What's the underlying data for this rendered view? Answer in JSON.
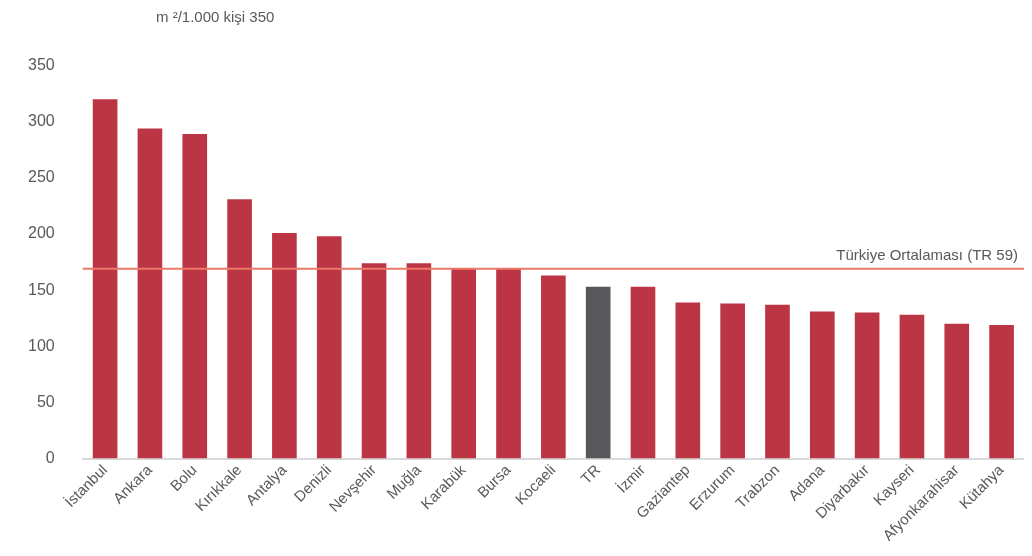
{
  "chart_data": {
    "type": "bar",
    "ylabel": "m ²/1.000 kişi 350",
    "categories": [
      "İstanbul",
      "Ankara",
      "Bolu",
      "Kırıkkale",
      "Antalya",
      "Denizli",
      "Nevşehir",
      "Muğla",
      "Karabük",
      "Bursa",
      "Kocaeli",
      "TR",
      "İzmir",
      "Gaziantep",
      "Erzurum",
      "Trabzon",
      "Adana",
      "Diyarbakır",
      "Kayseri",
      "Afyonkarahisar",
      "Kütahya"
    ],
    "values": [
      320,
      294,
      289,
      231,
      201,
      198,
      174,
      174,
      169,
      169,
      163,
      153,
      153,
      139,
      138,
      137,
      131,
      130,
      128,
      120,
      119
    ],
    "colors": [
      "#bc3545",
      "#bc3545",
      "#bc3545",
      "#bc3545",
      "#bc3545",
      "#bc3545",
      "#bc3545",
      "#bc3545",
      "#bc3545",
      "#bc3545",
      "#bc3545",
      "#58585a",
      "#bc3545",
      "#bc3545",
      "#bc3545",
      "#bc3545",
      "#bc3545",
      "#bc3545",
      "#bc3545",
      "#bc3545",
      "#bc3545"
    ],
    "ylim": [
      0,
      350
    ],
    "yticks": [
      0,
      50,
      100,
      150,
      200,
      250,
      300,
      350
    ],
    "ref_lines": [
      {
        "axis": "y",
        "value": 169,
        "label": "Türkiye Ortalaması (TR 59)",
        "color": "#ec7a6a"
      }
    ],
    "grid": false,
    "legend": false
  }
}
